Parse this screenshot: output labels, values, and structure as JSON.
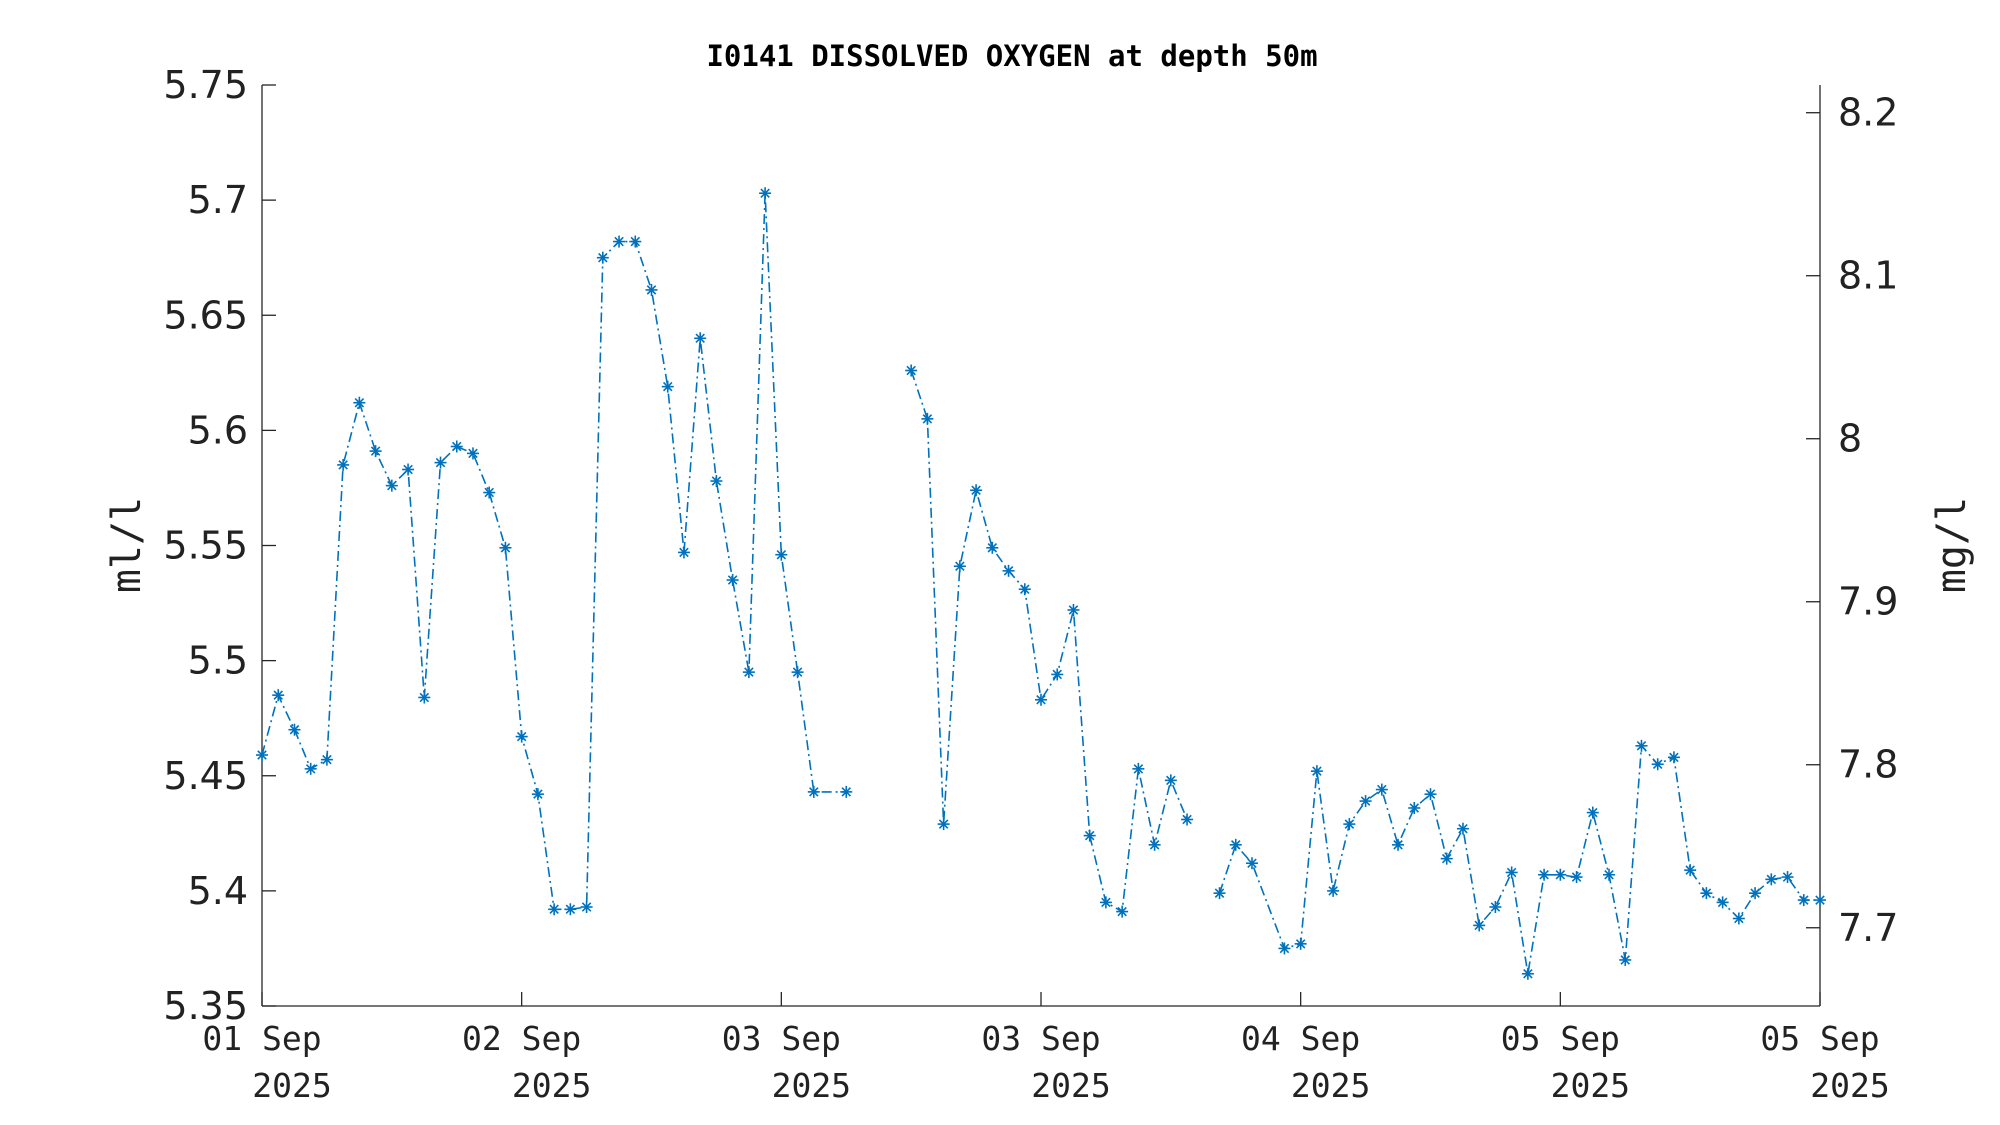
{
  "chart_data": {
    "type": "line",
    "title": "I0141 DISSOLVED OXYGEN at depth 50m",
    "ylabel": "ml/l",
    "y2label": "mg/l",
    "ylim": [
      5.35,
      5.75
    ],
    "yticks": [
      "5.35",
      "5.4",
      "5.45",
      "5.5",
      "5.55",
      "5.6",
      "5.65",
      "5.7",
      "5.75"
    ],
    "y2lim": [
      7.652,
      8.217
    ],
    "y2ticks": [
      "7.7",
      "7.8",
      "7.9",
      "8",
      "8.1",
      "8.2"
    ],
    "xlim": [
      "2025-09-01 00:00",
      "2025-09-07 00:00"
    ],
    "xticks": [
      {
        "day": "01 Sep",
        "year": "2025"
      },
      {
        "day": "02 Sep",
        "year": "2025"
      },
      {
        "day": "03 Sep",
        "year": "2025"
      },
      {
        "day": "03 Sep",
        "year": "2025"
      },
      {
        "day": "04 Sep",
        "year": "2025"
      },
      {
        "day": "05 Sep",
        "year": "2025"
      },
      {
        "day": "05 Sep",
        "year": "2025"
      }
    ],
    "grid": false,
    "marker": "asterisk",
    "line_style": "dash-dot",
    "color": "#0072BD",
    "series": [
      {
        "x": [
          "2025-09-01 00:00",
          "2025-09-01 01:30",
          "2025-09-01 03:00",
          "2025-09-01 04:30",
          "2025-09-01 06:00",
          "2025-09-01 07:30",
          "2025-09-01 09:00",
          "2025-09-01 10:30",
          "2025-09-01 12:00",
          "2025-09-01 13:30",
          "2025-09-01 15:00",
          "2025-09-01 16:30",
          "2025-09-01 18:00",
          "2025-09-01 19:30",
          "2025-09-01 21:00",
          "2025-09-01 22:30",
          "2025-09-02 00:00",
          "2025-09-02 01:30",
          "2025-09-02 03:00",
          "2025-09-02 04:30",
          "2025-09-02 06:00",
          "2025-09-02 07:30",
          "2025-09-02 09:00",
          "2025-09-02 10:30",
          "2025-09-02 12:00",
          "2025-09-02 13:30",
          "2025-09-02 15:00",
          "2025-09-02 16:30",
          "2025-09-02 18:00",
          "2025-09-02 19:30",
          "2025-09-02 21:00",
          "2025-09-02 22:30",
          "2025-09-03 00:00",
          "2025-09-03 01:30",
          "2025-09-03 03:00",
          "2025-09-03 06:00",
          null,
          "2025-09-03 12:00",
          "2025-09-03 13:30",
          "2025-09-03 15:00",
          "2025-09-03 16:30",
          "2025-09-03 18:00",
          "2025-09-03 19:30",
          "2025-09-03 21:00",
          "2025-09-03 22:30",
          "2025-09-04 00:00",
          "2025-09-04 01:30",
          "2025-09-04 03:00",
          "2025-09-04 04:30",
          "2025-09-04 06:00",
          "2025-09-04 07:30",
          "2025-09-04 09:00",
          "2025-09-04 10:30",
          "2025-09-04 12:00",
          "2025-09-04 13:30",
          null,
          "2025-09-04 16:30",
          "2025-09-04 18:00",
          "2025-09-04 19:30",
          "2025-09-04 22:30",
          "2025-09-05 00:00",
          "2025-09-05 01:30",
          "2025-09-05 03:00",
          "2025-09-05 04:30",
          "2025-09-05 06:00",
          "2025-09-05 07:30",
          "2025-09-05 09:00",
          "2025-09-05 10:30",
          "2025-09-05 12:00",
          "2025-09-05 13:30",
          "2025-09-05 15:00",
          "2025-09-05 16:30",
          "2025-09-05 18:00",
          "2025-09-05 19:30",
          "2025-09-05 21:00",
          "2025-09-05 22:30",
          "2025-09-06 00:00",
          "2025-09-06 01:30",
          "2025-09-06 03:00",
          "2025-09-06 04:30",
          "2025-09-06 06:00",
          "2025-09-06 07:30",
          "2025-09-06 09:00",
          "2025-09-06 10:30",
          "2025-09-06 12:00",
          "2025-09-06 13:30",
          "2025-09-06 15:00",
          "2025-09-06 16:30",
          "2025-09-06 18:00",
          "2025-09-06 19:30",
          "2025-09-06 21:00",
          "2025-09-06 22:30",
          "2025-09-07 00:00"
        ],
        "y": [
          5.459,
          5.485,
          5.47,
          5.453,
          5.457,
          5.585,
          5.612,
          5.591,
          5.576,
          5.583,
          5.484,
          5.586,
          5.593,
          5.59,
          5.573,
          5.549,
          5.467,
          5.442,
          5.392,
          5.392,
          5.393,
          5.675,
          5.682,
          5.682,
          5.661,
          5.619,
          5.547,
          5.64,
          5.578,
          5.535,
          5.495,
          5.703,
          5.546,
          5.495,
          5.443,
          5.443,
          null,
          5.626,
          5.605,
          5.429,
          5.541,
          5.574,
          5.549,
          5.539,
          5.531,
          5.483,
          5.494,
          5.522,
          5.424,
          5.395,
          5.391,
          5.453,
          5.42,
          5.448,
          5.431,
          null,
          5.399,
          5.42,
          5.412,
          5.375,
          5.377,
          5.452,
          5.4,
          5.429,
          5.439,
          5.444,
          5.42,
          5.436,
          5.442,
          5.414,
          5.427,
          5.385,
          5.393,
          5.408,
          5.364,
          5.407,
          5.407,
          5.406,
          5.434,
          5.407,
          5.37,
          5.463,
          5.455,
          5.458,
          5.409,
          5.399,
          5.395,
          5.388,
          5.399,
          5.405,
          5.406,
          5.396,
          5.396
        ]
      }
    ]
  }
}
